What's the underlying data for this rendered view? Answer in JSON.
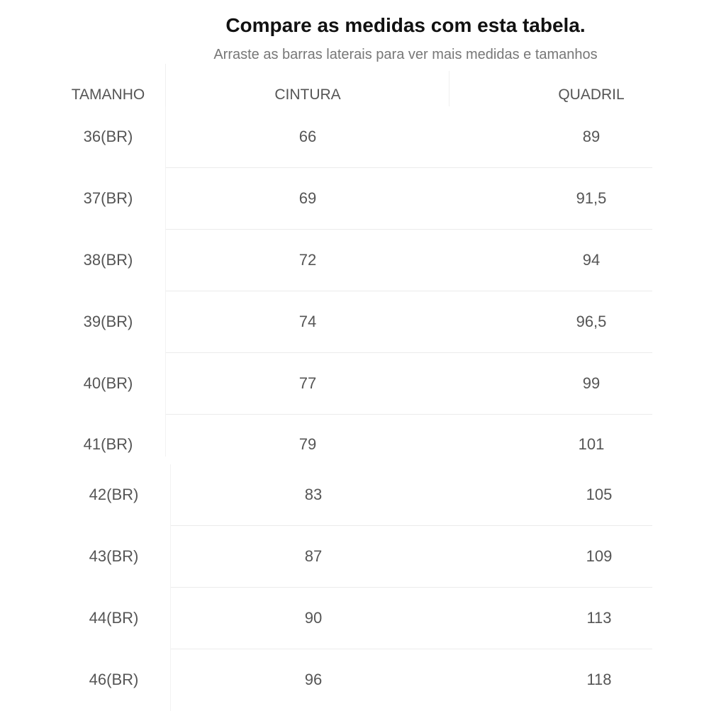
{
  "header": {
    "title": "Compare as medidas com esta tabela.",
    "subtitle": "Arraste as barras laterais para ver mais medidas e tamanhos"
  },
  "table": {
    "columns": [
      "TAMANHO",
      "CINTURA",
      "QUADRIL"
    ],
    "rows": [
      {
        "size": "36(BR)",
        "waist": "66",
        "hip": "89"
      },
      {
        "size": "37(BR)",
        "waist": "69",
        "hip": "91,5"
      },
      {
        "size": "38(BR)",
        "waist": "72",
        "hip": "94"
      },
      {
        "size": "39(BR)",
        "waist": "74",
        "hip": "96,5"
      },
      {
        "size": "40(BR)",
        "waist": "77",
        "hip": "99"
      },
      {
        "size": "41(BR)",
        "waist": "79",
        "hip": "101"
      },
      {
        "size": "42(BR)",
        "waist": "83",
        "hip": "105"
      },
      {
        "size": "43(BR)",
        "waist": "87",
        "hip": "109"
      },
      {
        "size": "44(BR)",
        "waist": "90",
        "hip": "113"
      },
      {
        "size": "46(BR)",
        "waist": "96",
        "hip": "118"
      }
    ]
  }
}
